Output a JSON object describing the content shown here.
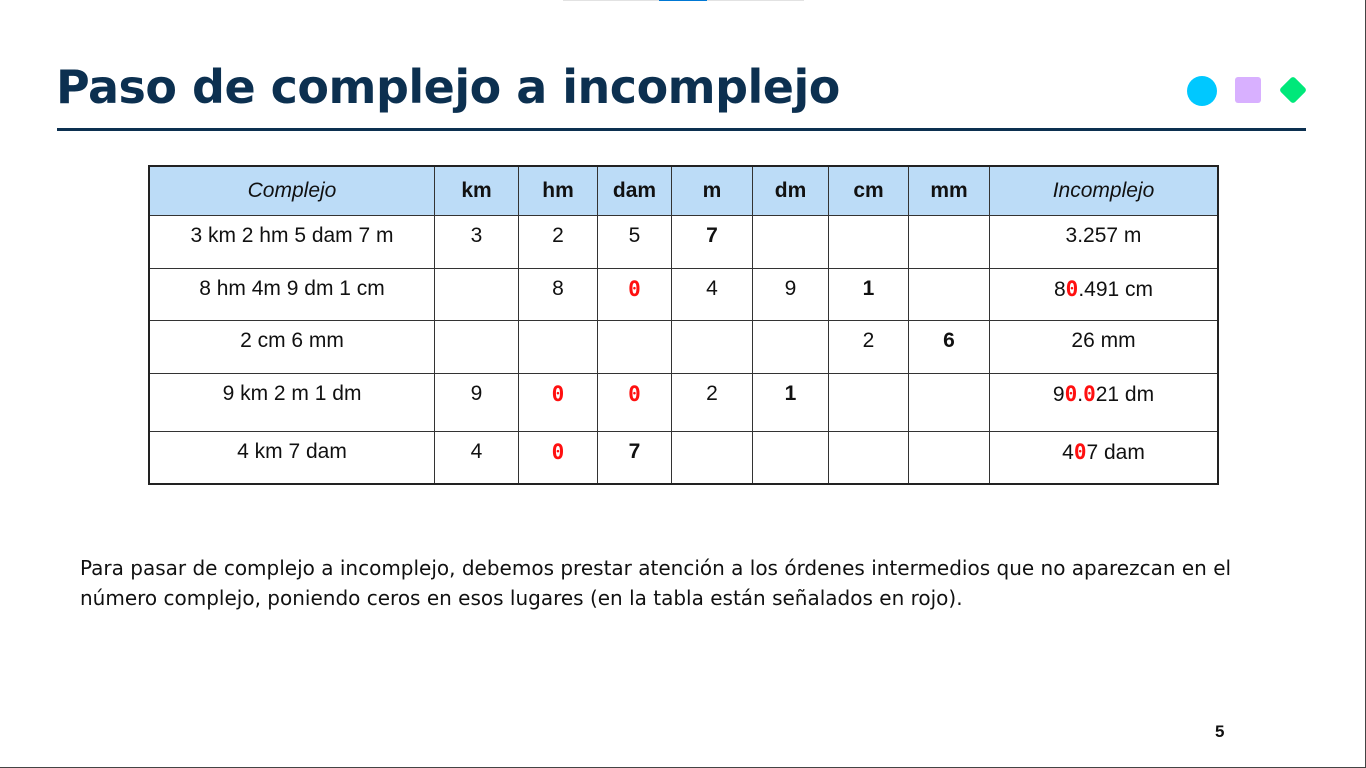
{
  "title": "Paso de complejo a incomplejo",
  "colors": {
    "title": "#0c3050",
    "circle": "#00c8ff",
    "square": "#d8b0ff",
    "diamond": "#00e87a",
    "header_bg": "#bcdcf7",
    "added_zero": "#ff1010"
  },
  "table": {
    "headers": [
      "Complejo",
      "km",
      "hm",
      "dam",
      "m",
      "dm",
      "cm",
      "mm",
      "Incomplejo"
    ],
    "rows": [
      {
        "complejo": "3 km 2 hm 5 dam 7 m",
        "cells": [
          {
            "v": "3"
          },
          {
            "v": "2"
          },
          {
            "v": "5"
          },
          {
            "v": "7",
            "s": "bold"
          },
          {
            "v": ""
          },
          {
            "v": ""
          },
          {
            "v": ""
          }
        ],
        "incomplejo": [
          {
            "t": "3.257 m"
          }
        ]
      },
      {
        "complejo": "8 hm 4m 9 dm 1 cm",
        "cells": [
          {
            "v": ""
          },
          {
            "v": "8"
          },
          {
            "v": "0",
            "s": "red"
          },
          {
            "v": "4"
          },
          {
            "v": "9"
          },
          {
            "v": "1",
            "s": "bold"
          },
          {
            "v": ""
          }
        ],
        "incomplejo": [
          {
            "t": "8"
          },
          {
            "t": "0",
            "s": "red"
          },
          {
            "t": ".491 cm"
          }
        ]
      },
      {
        "complejo": "2 cm 6 mm",
        "cells": [
          {
            "v": ""
          },
          {
            "v": ""
          },
          {
            "v": ""
          },
          {
            "v": ""
          },
          {
            "v": ""
          },
          {
            "v": "2"
          },
          {
            "v": "6",
            "s": "bold"
          }
        ],
        "incomplejo": [
          {
            "t": "26 mm"
          }
        ]
      },
      {
        "complejo": "9 km 2 m 1 dm",
        "cells": [
          {
            "v": "9"
          },
          {
            "v": "0",
            "s": "red"
          },
          {
            "v": "0",
            "s": "red"
          },
          {
            "v": "2"
          },
          {
            "v": "1",
            "s": "bold"
          },
          {
            "v": ""
          },
          {
            "v": ""
          }
        ],
        "incomplejo": [
          {
            "t": "9"
          },
          {
            "t": "0",
            "s": "red"
          },
          {
            "t": "."
          },
          {
            "t": "0",
            "s": "red"
          },
          {
            "t": "21 dm"
          }
        ]
      },
      {
        "complejo": "4 km 7 dam",
        "cells": [
          {
            "v": "4"
          },
          {
            "v": "0",
            "s": "red"
          },
          {
            "v": "7",
            "s": "bold"
          },
          {
            "v": ""
          },
          {
            "v": ""
          },
          {
            "v": ""
          },
          {
            "v": ""
          }
        ],
        "incomplejo": [
          {
            "t": "4"
          },
          {
            "t": "0",
            "s": "red"
          },
          {
            "t": "7 dam"
          }
        ]
      }
    ]
  },
  "paragraph": "Para pasar de complejo a incomplejo, debemos prestar atención a los órdenes intermedios que no aparezcan en el número complejo, poniendo ceros en esos lugares (en la tabla están señalados en rojo).",
  "page_number": "5"
}
